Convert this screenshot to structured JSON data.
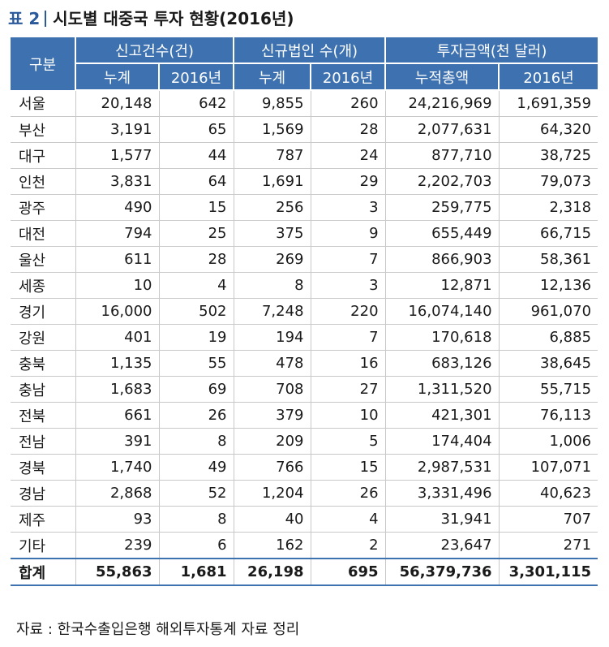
{
  "title": {
    "number": "표 2",
    "text": "시도별 대중국 투자 현황(2016년)"
  },
  "header": {
    "region": "구분",
    "groups": [
      "신고건수(건)",
      "신규법인 수(개)",
      "투자금액(천 달러)"
    ],
    "subs": [
      "누계",
      "2016년",
      "누계",
      "2016년",
      "누적총액",
      "2016년"
    ]
  },
  "rows": [
    [
      "서울",
      "20,148",
      "642",
      "9,855",
      "260",
      "24,216,969",
      "1,691,359"
    ],
    [
      "부산",
      "3,191",
      "65",
      "1,569",
      "28",
      "2,077,631",
      "64,320"
    ],
    [
      "대구",
      "1,577",
      "44",
      "787",
      "24",
      "877,710",
      "38,725"
    ],
    [
      "인천",
      "3,831",
      "64",
      "1,691",
      "29",
      "2,202,703",
      "79,073"
    ],
    [
      "광주",
      "490",
      "15",
      "256",
      "3",
      "259,775",
      "2,318"
    ],
    [
      "대전",
      "794",
      "25",
      "375",
      "9",
      "655,449",
      "66,715"
    ],
    [
      "울산",
      "611",
      "28",
      "269",
      "7",
      "866,903",
      "58,361"
    ],
    [
      "세종",
      "10",
      "4",
      "8",
      "3",
      "12,871",
      "12,136"
    ],
    [
      "경기",
      "16,000",
      "502",
      "7,248",
      "220",
      "16,074,140",
      "961,070"
    ],
    [
      "강원",
      "401",
      "19",
      "194",
      "7",
      "170,618",
      "6,885"
    ],
    [
      "충북",
      "1,135",
      "55",
      "478",
      "16",
      "683,126",
      "38,645"
    ],
    [
      "충남",
      "1,683",
      "69",
      "708",
      "27",
      "1,311,520",
      "55,715"
    ],
    [
      "전북",
      "661",
      "26",
      "379",
      "10",
      "421,301",
      "76,113"
    ],
    [
      "전남",
      "391",
      "8",
      "209",
      "5",
      "174,404",
      "1,006"
    ],
    [
      "경북",
      "1,740",
      "49",
      "766",
      "15",
      "2,987,531",
      "107,071"
    ],
    [
      "경남",
      "2,868",
      "52",
      "1,204",
      "26",
      "3,331,496",
      "40,623"
    ],
    [
      "제주",
      "93",
      "8",
      "40",
      "4",
      "31,941",
      "707"
    ],
    [
      "기타",
      "239",
      "6",
      "162",
      "2",
      "23,647",
      "271"
    ]
  ],
  "total": [
    "합계",
    "55,863",
    "1,681",
    "26,198",
    "695",
    "56,379,736",
    "3,301,115"
  ],
  "source": "자료 : 한국수출입은행 해외투자통계 자료 정리",
  "colors": {
    "header_bg": "#3d71b0",
    "title_accent": "#2a5a9c"
  }
}
